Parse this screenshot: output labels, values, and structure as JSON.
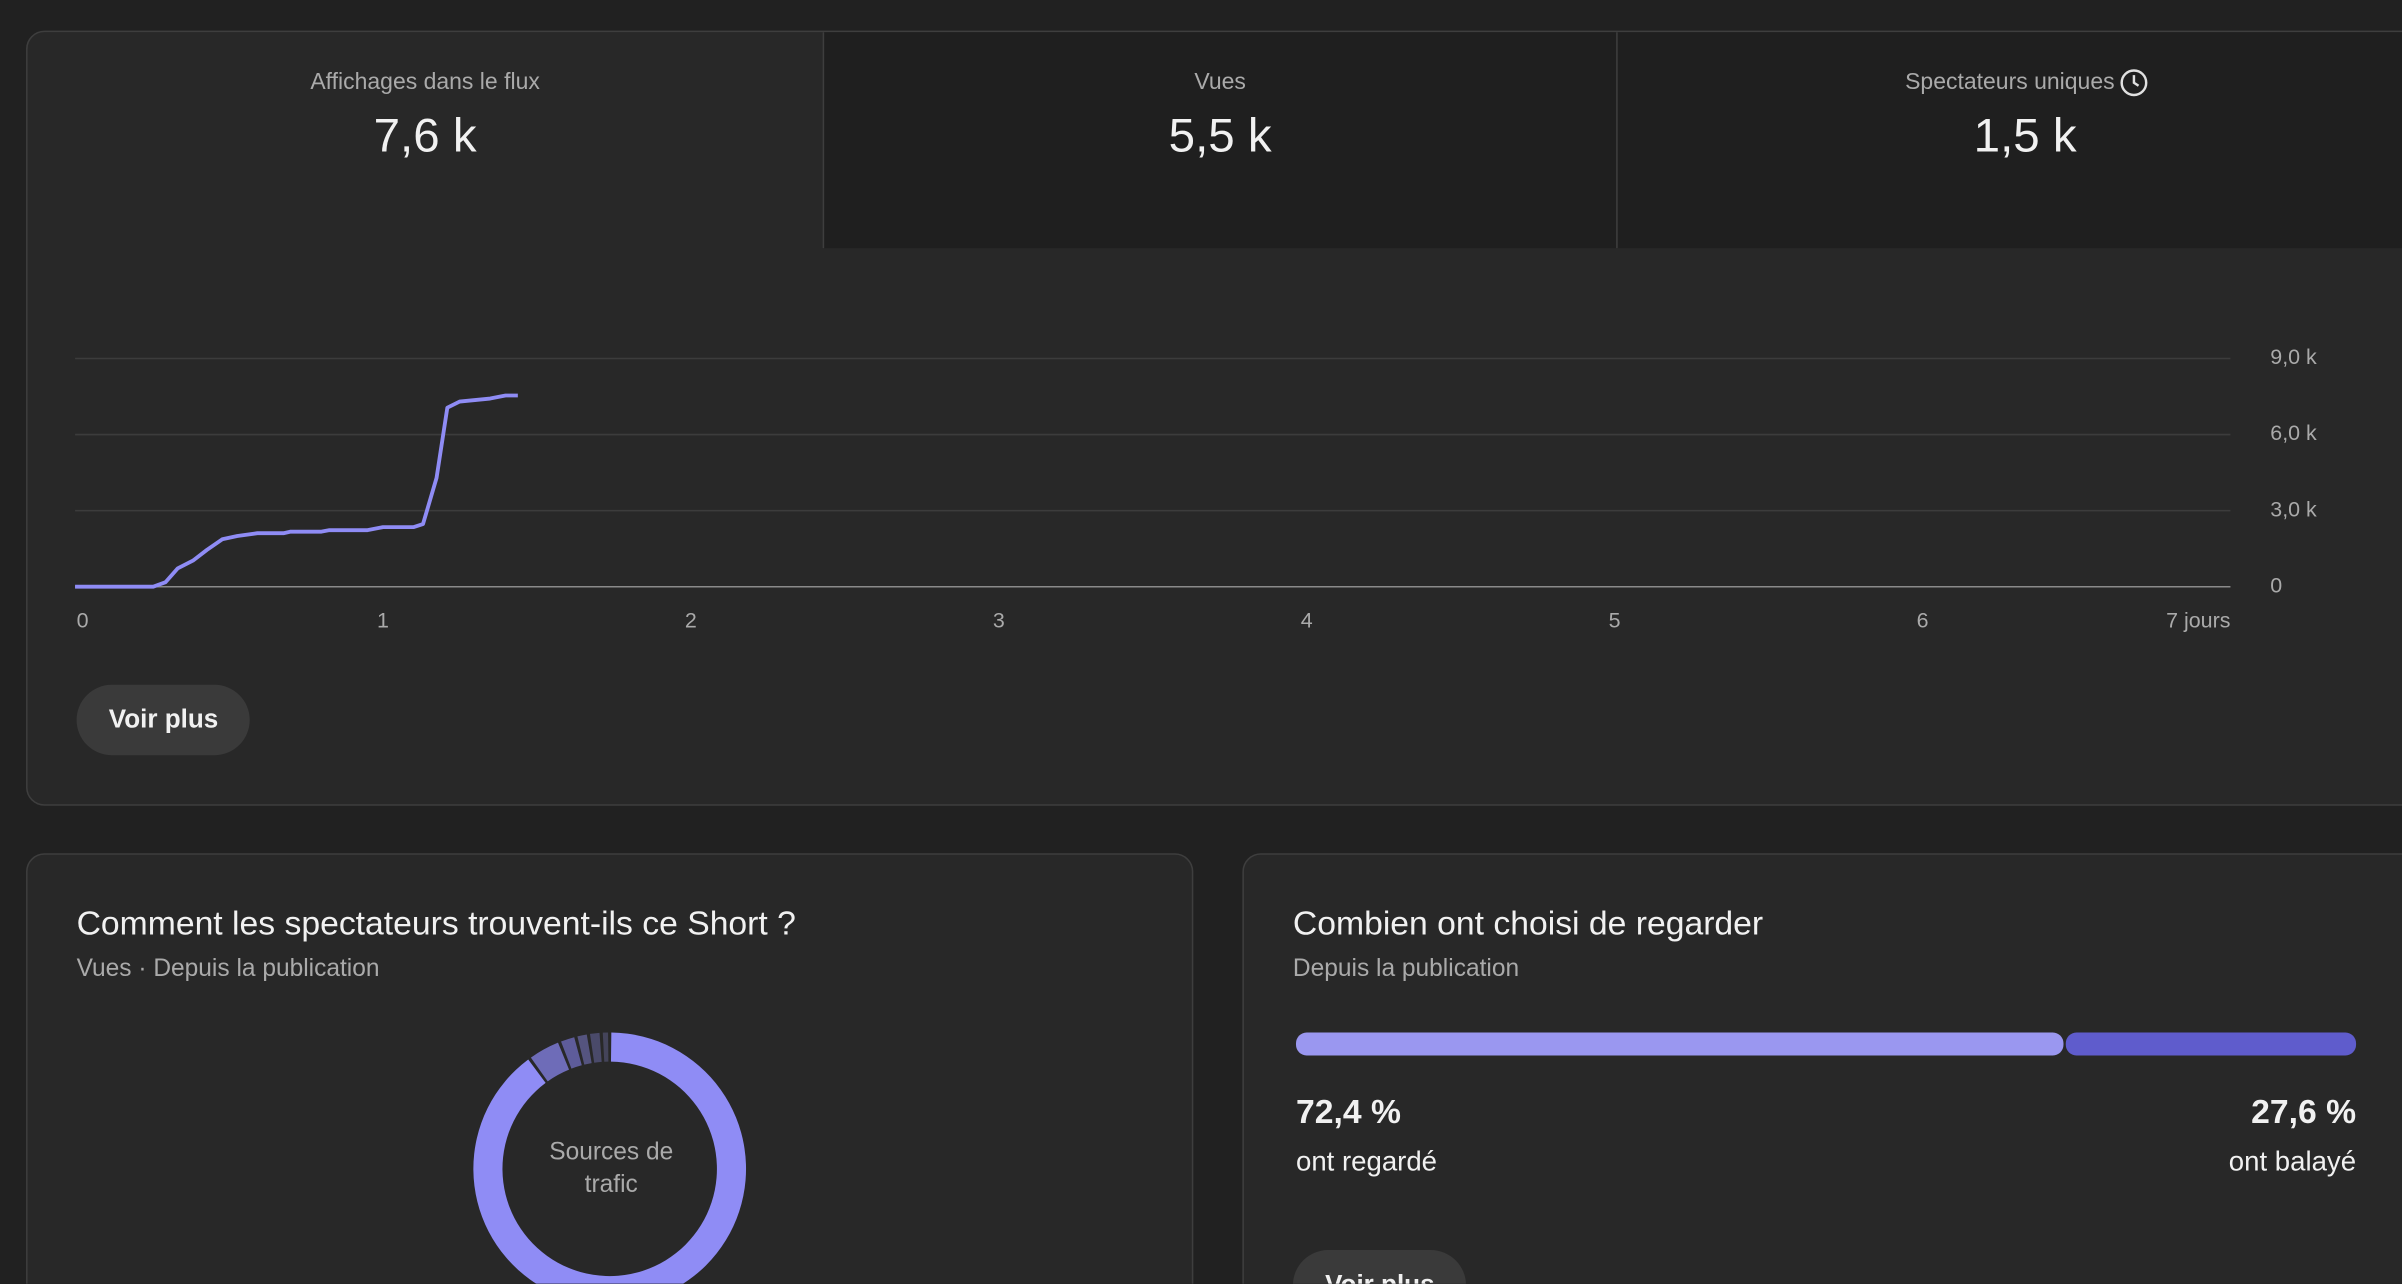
{
  "tabs": [
    {
      "label": "Affichages dans le flux",
      "value": "7,6 k"
    },
    {
      "label": "Vues",
      "value": "5,5 k"
    },
    {
      "label": "Spectateurs uniques",
      "value": "1,5 k"
    }
  ],
  "chart": {
    "type": "line",
    "color": "#8f8cf5",
    "x": [
      0,
      0.254,
      0.294,
      0.333,
      0.383,
      0.428,
      0.478,
      0.527,
      0.592,
      0.677,
      0.7,
      0.8,
      0.826,
      0.95,
      1.0,
      1.1,
      1.13,
      1.174,
      1.209,
      1.249,
      1.348,
      1.398,
      1.438
    ],
    "values": [
      0,
      0,
      180,
      720,
      1030,
      1450,
      1870,
      2000,
      2110,
      2110,
      2170,
      2170,
      2230,
      2230,
      2350,
      2350,
      2470,
      4290,
      7060,
      7300,
      7420,
      7540,
      7540
    ],
    "xlim": [
      0,
      7
    ],
    "ylim": [
      0,
      9000
    ],
    "xticks": [
      0,
      1,
      2,
      3,
      4,
      5,
      6,
      {
        "value": 7,
        "label": "7 jours"
      }
    ],
    "yticks": [
      0,
      {
        "value": 3000,
        "label": "3,0 k"
      },
      {
        "value": 6000,
        "label": "6,0 k"
      },
      {
        "value": 9000,
        "label": "9,0 k"
      }
    ],
    "grid": true
  },
  "more_button": "Voir plus",
  "traffic": {
    "title": "Comment les spectateurs trouvent-ils ce Short ?",
    "subtitle": "Vues · Depuis la publication",
    "center_label": "Sources de trafic",
    "segments": [
      {
        "value": 90,
        "color": "#8f8cf5"
      },
      {
        "value": 4,
        "color": "#6e6cb8"
      },
      {
        "value": 2,
        "color": "#5e5c9a"
      },
      {
        "value": 1.5,
        "color": "#55547f"
      },
      {
        "value": 1.5,
        "color": "#4a4a6a"
      },
      {
        "value": 1,
        "color": "#44445a"
      }
    ]
  },
  "watch": {
    "title": "Combien ont choisi de regarder",
    "subtitle": "Depuis la publication",
    "segments": [
      {
        "value": 72.4,
        "value_label": "72,4 %",
        "label": "ont regardé",
        "color": "#9a97f0"
      },
      {
        "value": 27.6,
        "value_label": "27,6 %",
        "label": "ont balayé",
        "color": "#5f5ccc"
      }
    ],
    "button": "Voir plus"
  }
}
